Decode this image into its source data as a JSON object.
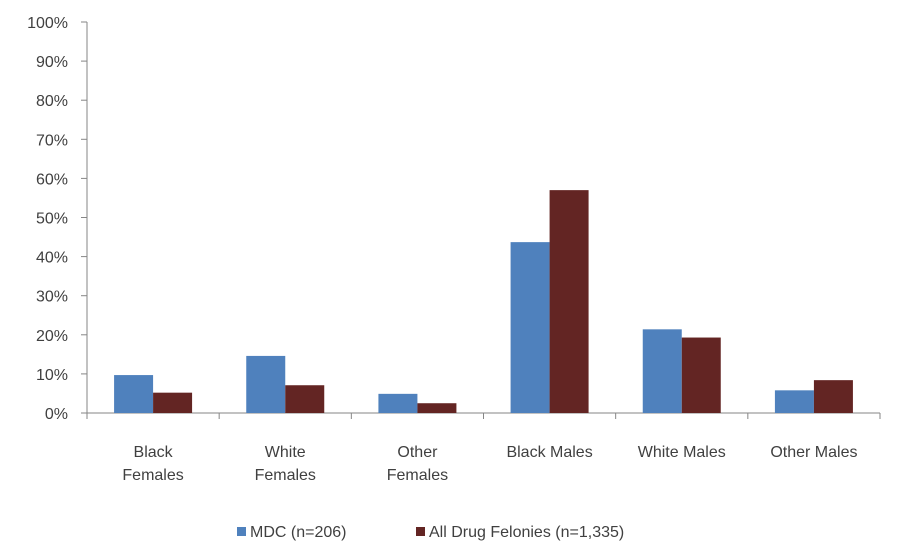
{
  "chart_data": {
    "type": "bar",
    "categories": [
      [
        "Black",
        "Females"
      ],
      [
        "White",
        "Females"
      ],
      [
        "Other",
        "Females"
      ],
      [
        "Black Males"
      ],
      [
        "White Males"
      ],
      [
        "Other Males"
      ]
    ],
    "series": [
      {
        "name": "MDC (n=206)",
        "color": "#4F81BD",
        "values": [
          9.7,
          14.6,
          4.9,
          43.7,
          21.4,
          5.8
        ]
      },
      {
        "name": "All Drug Felonies (n=1,335)",
        "color": "#632523",
        "values": [
          5.2,
          7.1,
          2.5,
          57.0,
          19.3,
          8.4
        ]
      }
    ],
    "y_ticks": [
      "0%",
      "10%",
      "20%",
      "30%",
      "40%",
      "50%",
      "60%",
      "70%",
      "80%",
      "90%",
      "100%"
    ],
    "ylim": [
      0,
      100
    ],
    "grid": false,
    "legend_position": "bottom"
  }
}
